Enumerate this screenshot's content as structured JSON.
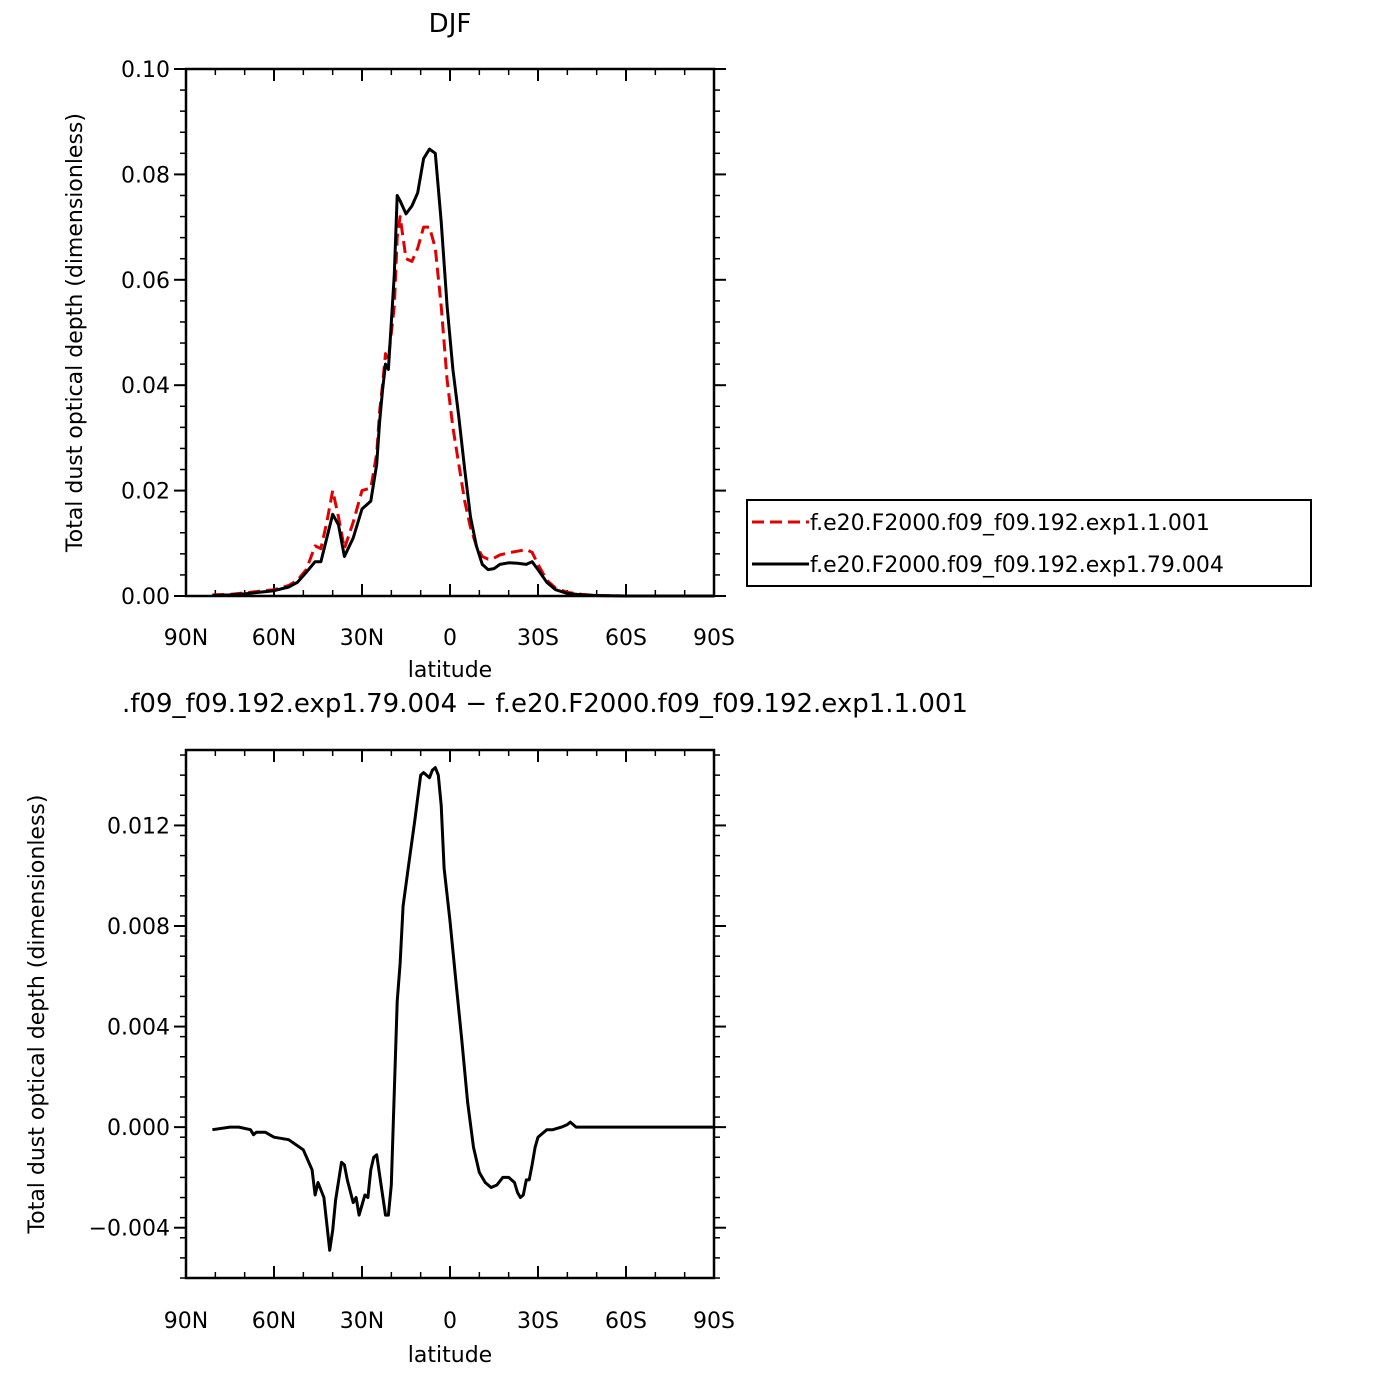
{
  "chart_data": [
    {
      "type": "line",
      "title": "DJF",
      "xlabel": "latitude",
      "ylabel": "Total dust optical depth (dimensionless)",
      "xlim": [
        90,
        -90
      ],
      "ylim": [
        0.0,
        0.1
      ],
      "xticks": [
        90,
        60,
        30,
        0,
        -30,
        -60,
        -90
      ],
      "xtick_labels": [
        "90N",
        "60N",
        "30N",
        "0",
        "30S",
        "60S",
        "90S"
      ],
      "yticks": [
        0.0,
        0.02,
        0.04,
        0.06,
        0.08,
        0.1
      ],
      "ytick_labels": [
        "0.00",
        "0.02",
        "0.04",
        "0.06",
        "0.08",
        "0.10"
      ],
      "legend_position": "right",
      "series": [
        {
          "name": "f.e20.F2000.f09_f09.192.exp1.1.001",
          "color": "#e00000",
          "dash": "dashed",
          "x": [
            81,
            75,
            70,
            65,
            60,
            55,
            52,
            49,
            46,
            44,
            42,
            40,
            38,
            36,
            33,
            30,
            27,
            25,
            24,
            23,
            22,
            21,
            19,
            18,
            17,
            15,
            13,
            11,
            9,
            7,
            5,
            3,
            1,
            -1,
            -3,
            -5,
            -7,
            -9,
            -11,
            -13,
            -15,
            -17,
            -20,
            -23,
            -26,
            -28,
            -30,
            -33,
            -36,
            -40,
            -45,
            -50,
            -60,
            -70,
            -80,
            -90
          ],
          "y": [
            0.0002,
            0.0003,
            0.0006,
            0.0009,
            0.0012,
            0.002,
            0.003,
            0.005,
            0.0095,
            0.009,
            0.014,
            0.02,
            0.015,
            0.009,
            0.014,
            0.02,
            0.0205,
            0.027,
            0.035,
            0.04,
            0.046,
            0.045,
            0.055,
            0.068,
            0.072,
            0.064,
            0.0635,
            0.066,
            0.07,
            0.07,
            0.066,
            0.055,
            0.041,
            0.032,
            0.025,
            0.018,
            0.013,
            0.0095,
            0.0075,
            0.007,
            0.0072,
            0.0078,
            0.0082,
            0.0085,
            0.0088,
            0.0083,
            0.006,
            0.003,
            0.0015,
            0.0007,
            0.0003,
            0.0001,
            0.0,
            0.0,
            0.0,
            0.0
          ]
        },
        {
          "name": "f.e20.F2000.f09_f09.192.exp1.79.004",
          "color": "#000000",
          "dash": "solid",
          "x": [
            81,
            75,
            70,
            65,
            60,
            55,
            52,
            49,
            46,
            44,
            42,
            40,
            38,
            36,
            33,
            30,
            27,
            25,
            24,
            23,
            22,
            21,
            19,
            18,
            17,
            15,
            13,
            11,
            9,
            7,
            5,
            3,
            1,
            -1,
            -3,
            -5,
            -7,
            -9,
            -11,
            -13,
            -15,
            -17,
            -20,
            -23,
            -26,
            -28,
            -30,
            -33,
            -36,
            -40,
            -45,
            -50,
            -60,
            -70,
            -80,
            -90
          ],
          "y": [
            0.0001,
            0.0002,
            0.0004,
            0.0007,
            0.001,
            0.0017,
            0.0026,
            0.0045,
            0.0065,
            0.0065,
            0.011,
            0.0155,
            0.0135,
            0.0075,
            0.011,
            0.0165,
            0.018,
            0.025,
            0.033,
            0.039,
            0.044,
            0.043,
            0.061,
            0.076,
            0.075,
            0.0725,
            0.074,
            0.0765,
            0.083,
            0.0848,
            0.084,
            0.071,
            0.055,
            0.043,
            0.034,
            0.024,
            0.015,
            0.0095,
            0.006,
            0.005,
            0.0052,
            0.006,
            0.0063,
            0.0062,
            0.006,
            0.0065,
            0.005,
            0.0026,
            0.0012,
            0.0005,
            0.0002,
            0.0001,
            0.0,
            0.0,
            0.0,
            0.0
          ]
        }
      ]
    },
    {
      "type": "line",
      "title": ".f09_f09.192.exp1.79.004 − f.e20.F2000.f09_f09.192.exp1.1.001",
      "xlabel": "latitude",
      "ylabel": "Total dust optical depth (dimensionless)",
      "xlim": [
        90,
        -90
      ],
      "ylim": [
        -0.006,
        0.015
      ],
      "xticks": [
        90,
        60,
        30,
        0,
        -30,
        -60,
        -90
      ],
      "xtick_labels": [
        "90N",
        "60N",
        "30N",
        "0",
        "30S",
        "60S",
        "90S"
      ],
      "yticks": [
        -0.004,
        0.0,
        0.004,
        0.008,
        0.012
      ],
      "ytick_labels": [
        "−0.004",
        "0.000",
        "0.004",
        "0.008",
        "0.012"
      ],
      "series": [
        {
          "color": "#000000",
          "dash": "solid",
          "x": [
            81,
            75,
            72,
            68,
            67,
            66,
            63,
            60,
            55,
            50,
            47,
            46,
            45,
            43,
            41,
            40,
            39,
            37,
            36,
            35,
            33,
            32,
            31,
            30,
            29,
            28,
            27,
            26,
            25,
            24,
            22,
            21,
            20,
            18,
            17,
            16,
            14,
            12,
            11,
            10,
            9,
            8,
            7,
            6,
            5,
            4,
            3,
            2,
            0,
            -2,
            -4,
            -6,
            -8,
            -10,
            -12,
            -14,
            -16,
            -18,
            -20,
            -22,
            -23,
            -24,
            -25,
            -26,
            -27,
            -28,
            -29,
            -30,
            -31,
            -32,
            -33,
            -35,
            -38,
            -40,
            -41,
            -42,
            -43,
            -44,
            -45,
            -50,
            -60,
            -70,
            -80,
            -90
          ],
          "y": [
            -0.0001,
            0.0,
            0.0,
            -0.0001,
            -0.0003,
            -0.0002,
            -0.0002,
            -0.0004,
            -0.0005,
            -0.0009,
            -0.0017,
            -0.0027,
            -0.0022,
            -0.0028,
            -0.0049,
            -0.0041,
            -0.0029,
            -0.0014,
            -0.0015,
            -0.0021,
            -0.003,
            -0.0028,
            -0.0035,
            -0.0031,
            -0.0027,
            -0.0028,
            -0.0017,
            -0.0012,
            -0.0011,
            -0.0019,
            -0.0035,
            -0.0035,
            -0.0023,
            0.005,
            0.0065,
            0.0088,
            0.0105,
            0.0122,
            0.0131,
            0.014,
            0.0141,
            0.014,
            0.0139,
            0.0142,
            0.0143,
            0.014,
            0.0128,
            0.0103,
            0.0082,
            0.0058,
            0.0035,
            0.001,
            -0.0008,
            -0.0018,
            -0.0022,
            -0.0024,
            -0.0023,
            -0.002,
            -0.002,
            -0.0022,
            -0.0026,
            -0.0028,
            -0.0027,
            -0.0021,
            -0.0021,
            -0.0015,
            -0.0008,
            -0.0004,
            -0.0003,
            -0.0002,
            -0.0001,
            -0.0001,
            0.0,
            0.0001,
            0.0002,
            0.0001,
            0.0,
            0.0,
            0.0,
            0.0,
            0.0,
            0.0,
            0.0,
            0.0
          ]
        }
      ]
    }
  ]
}
